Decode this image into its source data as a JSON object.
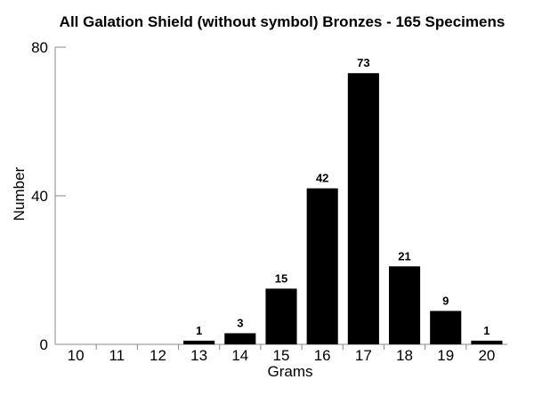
{
  "chart_data": {
    "type": "bar",
    "title": "All Galation Shield (without symbol) Bronzes  - 165 Specimens",
    "xlabel": "Grams",
    "ylabel": "Number",
    "categories": [
      "10",
      "11",
      "12",
      "13",
      "14",
      "15",
      "16",
      "17",
      "18",
      "19",
      "20"
    ],
    "values": [
      0,
      0,
      0,
      1,
      3,
      15,
      42,
      73,
      21,
      9,
      1
    ],
    "data_labels": [
      "",
      "",
      "",
      "1",
      "3",
      "15",
      "42",
      "73",
      "21",
      "9",
      "1"
    ],
    "yticks": [
      "0",
      "40",
      "80"
    ],
    "ylim": [
      0,
      80
    ],
    "grid": false,
    "bar_color": "#000000"
  }
}
